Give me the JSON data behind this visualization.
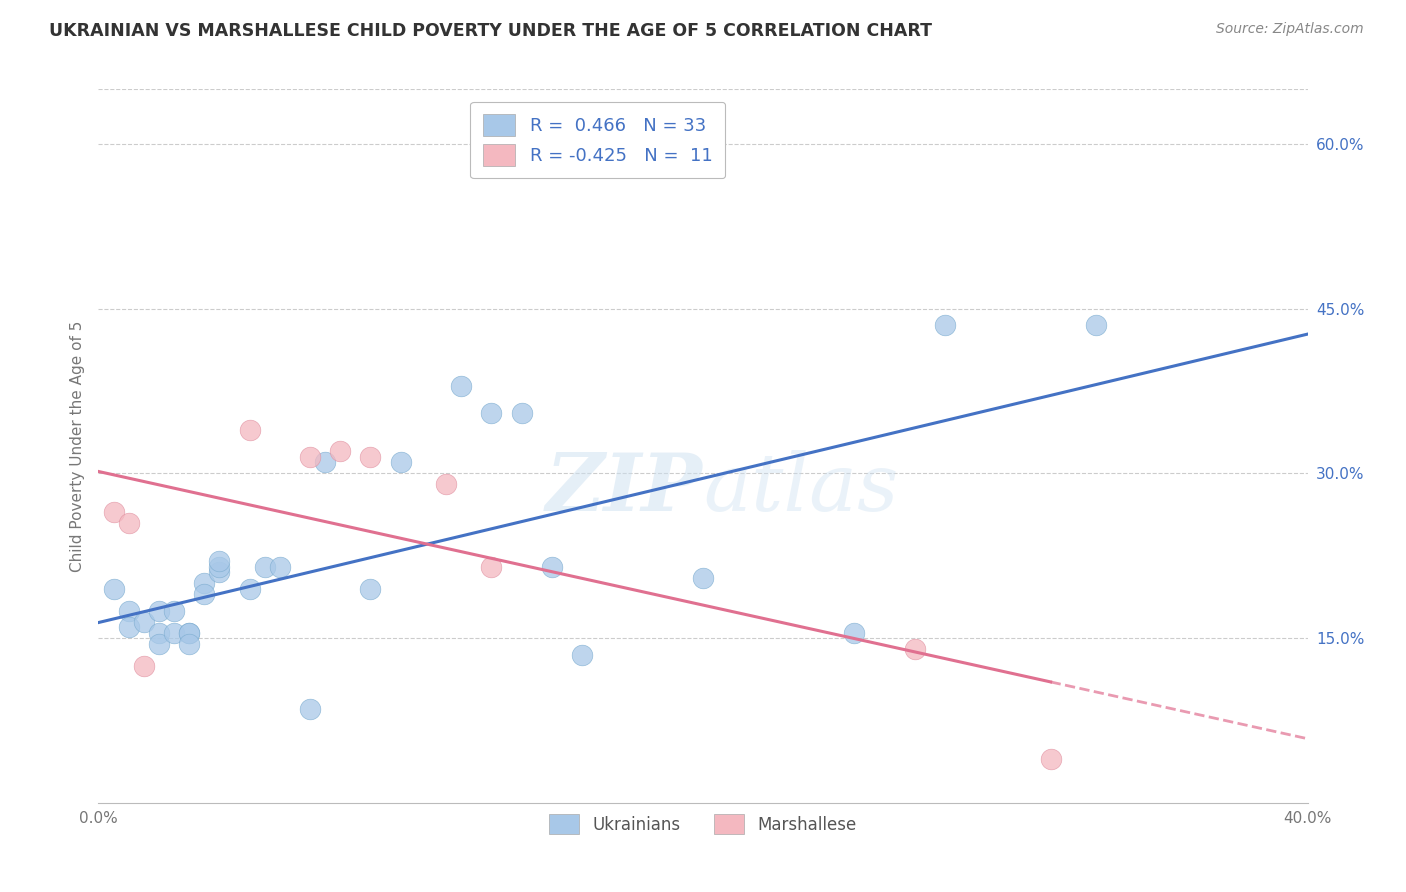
{
  "title": "UKRAINIAN VS MARSHALLESE CHILD POVERTY UNDER THE AGE OF 5 CORRELATION CHART",
  "source": "Source: ZipAtlas.com",
  "ylabel": "Child Poverty Under the Age of 5",
  "xlabel": "",
  "xlim": [
    0.0,
    0.4
  ],
  "ylim": [
    0.0,
    0.65
  ],
  "yticks": [
    0.15,
    0.3,
    0.45,
    0.6
  ],
  "xticks": [
    0.0,
    0.1,
    0.2,
    0.3,
    0.4
  ],
  "xtick_labels": [
    "0.0%",
    "",
    "",
    "",
    "40.0%"
  ],
  "ytick_labels": [
    "15.0%",
    "30.0%",
    "45.0%",
    "60.0%"
  ],
  "watermark": "ZIPatlas",
  "blue_color": "#a8c8e8",
  "pink_color": "#f4b8c0",
  "blue_line_color": "#4472c4",
  "pink_line_color": "#e07090",
  "title_color": "#333333",
  "axis_label_color": "#4472c4",
  "ukrainians_x": [
    0.005,
    0.01,
    0.01,
    0.015,
    0.02,
    0.02,
    0.02,
    0.025,
    0.025,
    0.03,
    0.03,
    0.03,
    0.035,
    0.035,
    0.04,
    0.04,
    0.04,
    0.05,
    0.055,
    0.06,
    0.07,
    0.075,
    0.09,
    0.1,
    0.12,
    0.13,
    0.14,
    0.15,
    0.16,
    0.2,
    0.25,
    0.28,
    0.33
  ],
  "ukrainians_y": [
    0.195,
    0.175,
    0.16,
    0.165,
    0.175,
    0.155,
    0.145,
    0.175,
    0.155,
    0.155,
    0.155,
    0.145,
    0.2,
    0.19,
    0.21,
    0.215,
    0.22,
    0.195,
    0.215,
    0.215,
    0.085,
    0.31,
    0.195,
    0.31,
    0.38,
    0.355,
    0.355,
    0.215,
    0.135,
    0.205,
    0.155,
    0.435,
    0.435
  ],
  "marshallese_x": [
    0.005,
    0.01,
    0.015,
    0.05,
    0.07,
    0.08,
    0.09,
    0.115,
    0.13,
    0.27,
    0.315
  ],
  "marshallese_y": [
    0.265,
    0.255,
    0.125,
    0.34,
    0.315,
    0.32,
    0.315,
    0.29,
    0.215,
    0.14,
    0.04
  ]
}
